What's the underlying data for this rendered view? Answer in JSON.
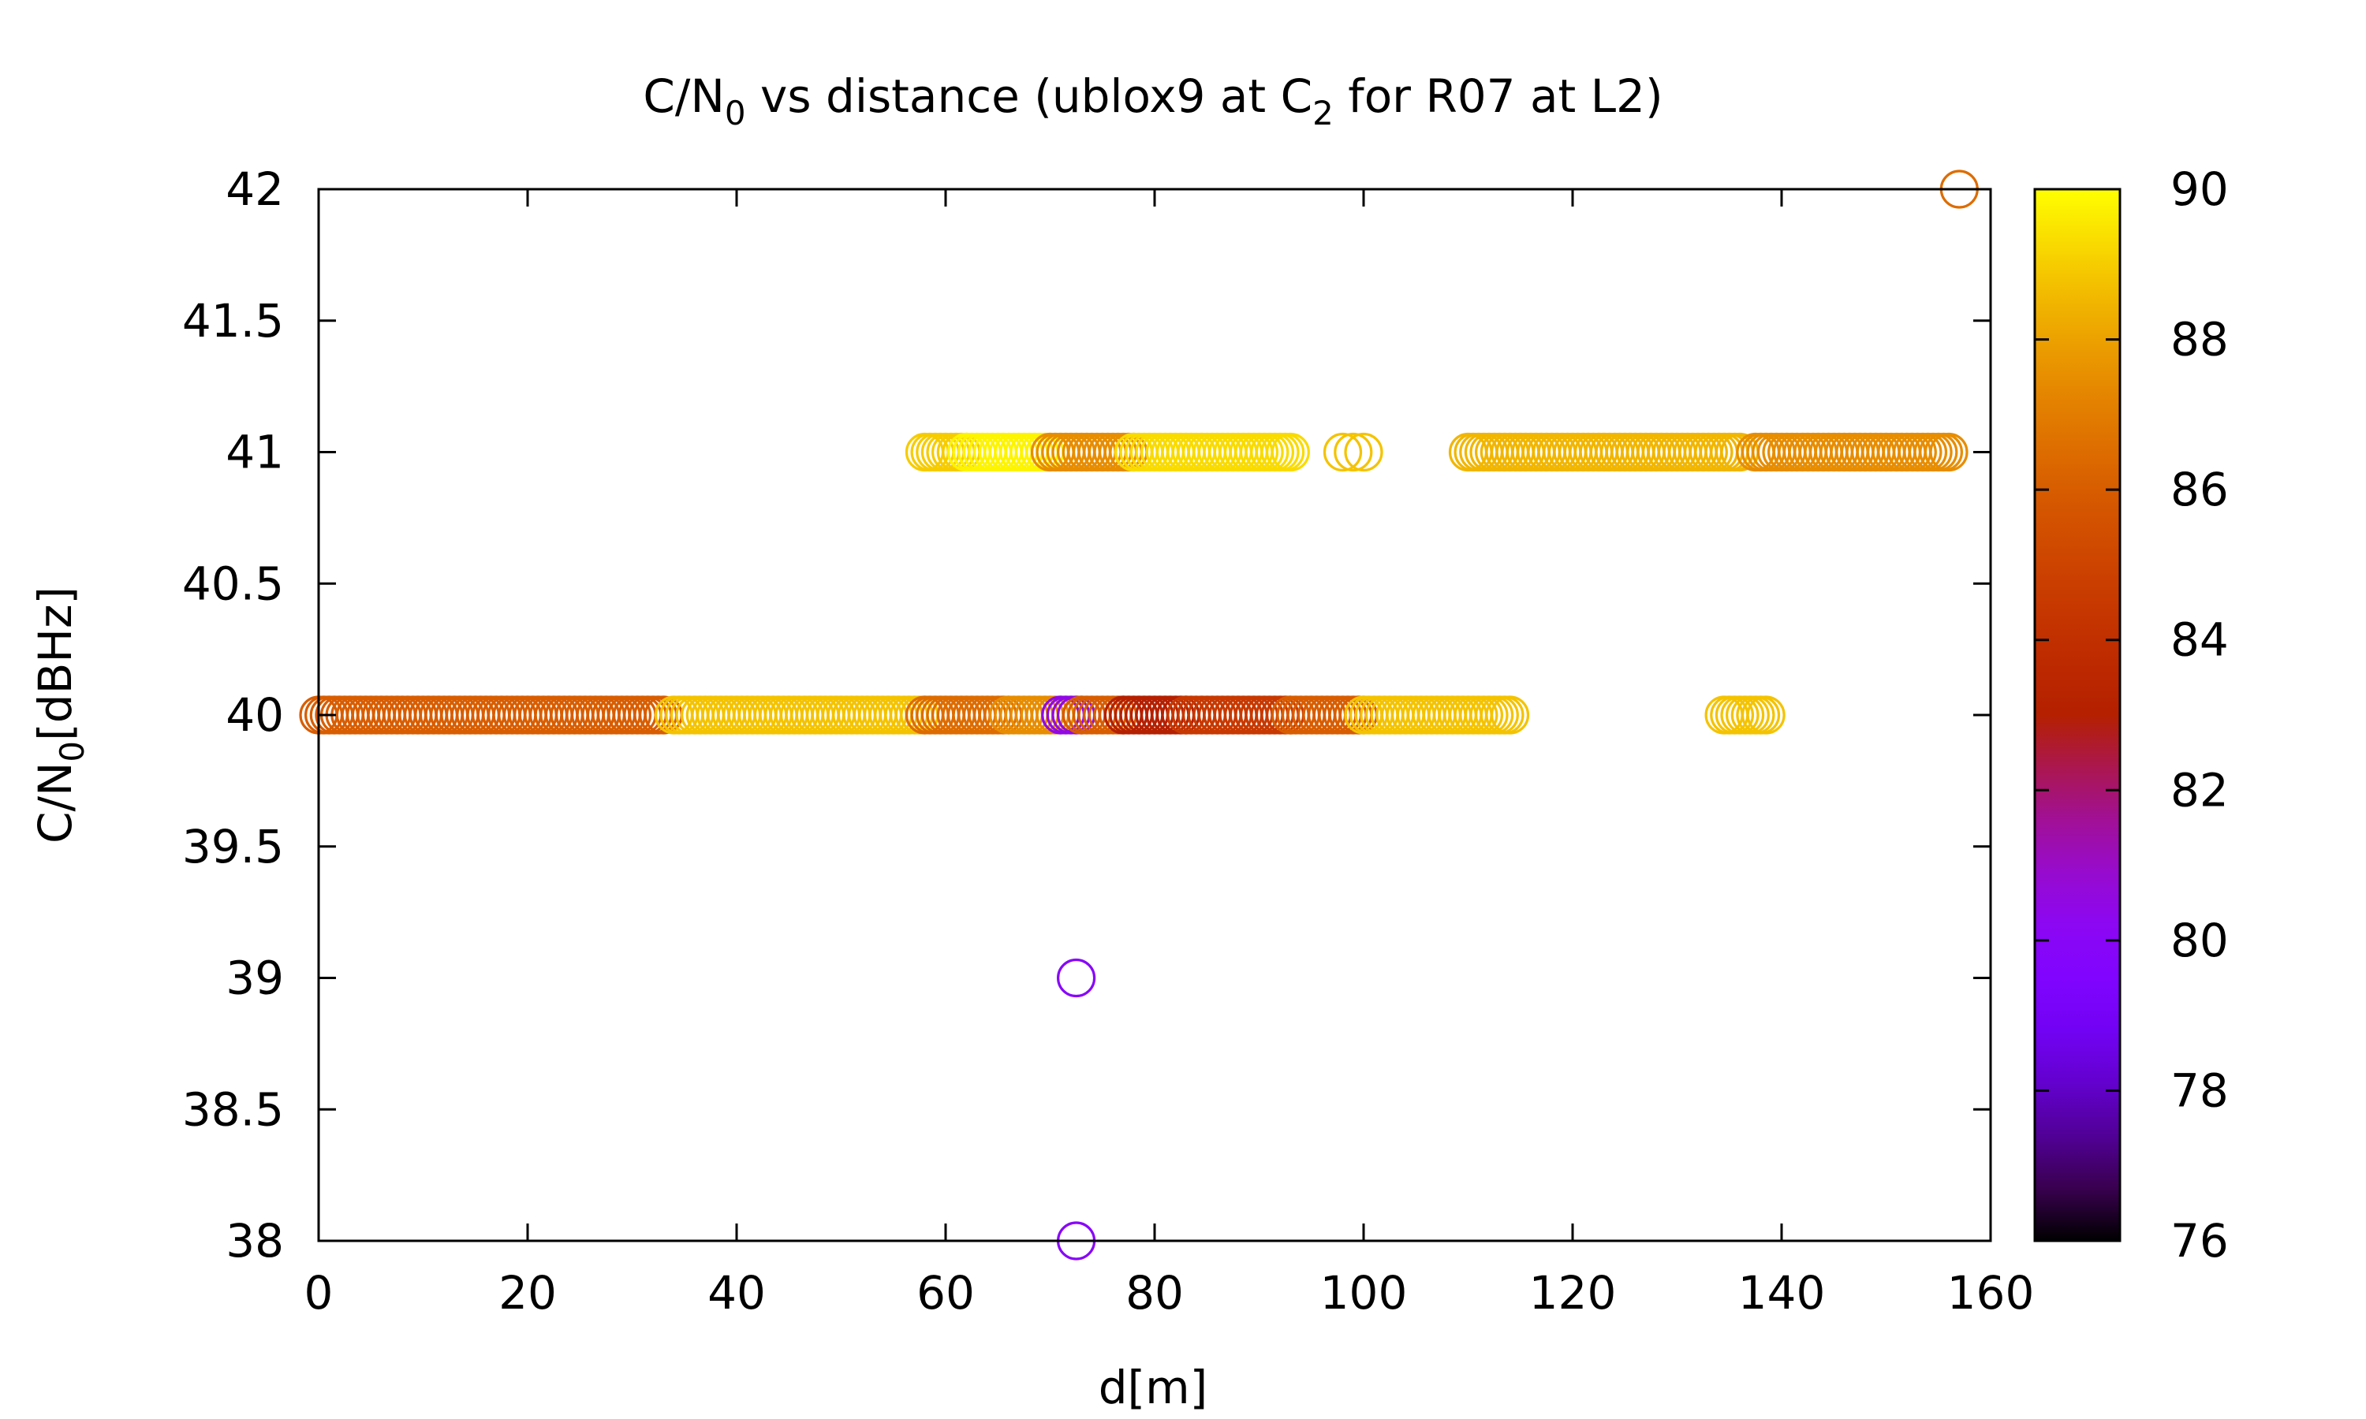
{
  "chart_data": {
    "type": "scatter",
    "title": {
      "prefix": "C/N",
      "sub1": "0",
      "middle": " vs distance (ublox9 at C",
      "sub2": "2",
      "suffix": " for R07 at L2)"
    },
    "xlabel": "d[m]",
    "ylabel": {
      "prefix": "C/N",
      "sub": "0",
      "suffix": "[dBHz]"
    },
    "xlim": [
      0,
      160
    ],
    "ylim": [
      38,
      42
    ],
    "x_ticks": [
      0,
      20,
      40,
      60,
      80,
      100,
      120,
      140,
      160
    ],
    "y_ticks": [
      38,
      38.5,
      39,
      39.5,
      40,
      40.5,
      41,
      41.5,
      42
    ],
    "colorbar": {
      "range": [
        76,
        90
      ],
      "ticks": [
        76,
        78,
        80,
        82,
        84,
        86,
        88,
        90
      ]
    },
    "marker": "open-circle",
    "grid": false,
    "legend": "none",
    "segments": [
      {
        "y": 40,
        "x_start": 0,
        "x_end": 33,
        "step": 0.5,
        "color_value": 86
      },
      {
        "y": 40,
        "x_start": 34,
        "x_end": 58,
        "step": 0.5,
        "color_value": 88.8
      },
      {
        "y": 40,
        "x_start": 58,
        "x_end": 66,
        "step": 0.5,
        "color_value": 86.5
      },
      {
        "y": 40,
        "x_start": 66,
        "x_end": 71,
        "step": 0.5,
        "color_value": 87.5
      },
      {
        "y": 40,
        "x_start": 71,
        "x_end": 73,
        "step": 0.5,
        "color_value": 80.5
      },
      {
        "y": 40,
        "x_start": 73,
        "x_end": 77,
        "step": 0.5,
        "color_value": 86
      },
      {
        "y": 40,
        "x_start": 77,
        "x_end": 83,
        "step": 0.5,
        "color_value": 83
      },
      {
        "y": 40,
        "x_start": 83,
        "x_end": 93,
        "step": 0.5,
        "color_value": 84.5
      },
      {
        "y": 40,
        "x_start": 93,
        "x_end": 100,
        "step": 0.5,
        "color_value": 86
      },
      {
        "y": 40,
        "x_start": 100,
        "x_end": 114,
        "step": 0.5,
        "color_value": 88.8
      },
      {
        "y": 40,
        "x_start": 134.5,
        "x_end": 138.5,
        "step": 0.5,
        "color_value": 88.8
      },
      {
        "y": 41,
        "x_start": 58,
        "x_end": 62,
        "step": 0.5,
        "color_value": 89
      },
      {
        "y": 41,
        "x_start": 62,
        "x_end": 70,
        "step": 0.5,
        "color_value": 89.8
      },
      {
        "y": 41,
        "x_start": 70,
        "x_end": 78,
        "step": 0.5,
        "color_value": 87.5
      },
      {
        "y": 41,
        "x_start": 78,
        "x_end": 93,
        "step": 0.5,
        "color_value": 89.3
      },
      {
        "y": 41,
        "x_start": 98,
        "x_end": 100,
        "step": 1,
        "color_value": 88.8
      },
      {
        "y": 41,
        "x_start": 110,
        "x_end": 136,
        "step": 0.5,
        "color_value": 88.5
      },
      {
        "y": 41,
        "x_start": 137.5,
        "x_end": 156,
        "step": 0.5,
        "color_value": 87.5
      }
    ],
    "points": [
      {
        "x": 72.5,
        "y": 39,
        "color_value": 80
      },
      {
        "x": 72.5,
        "y": 38,
        "color_value": 80
      },
      {
        "x": 157,
        "y": 42,
        "color_value": 86.5
      }
    ]
  }
}
